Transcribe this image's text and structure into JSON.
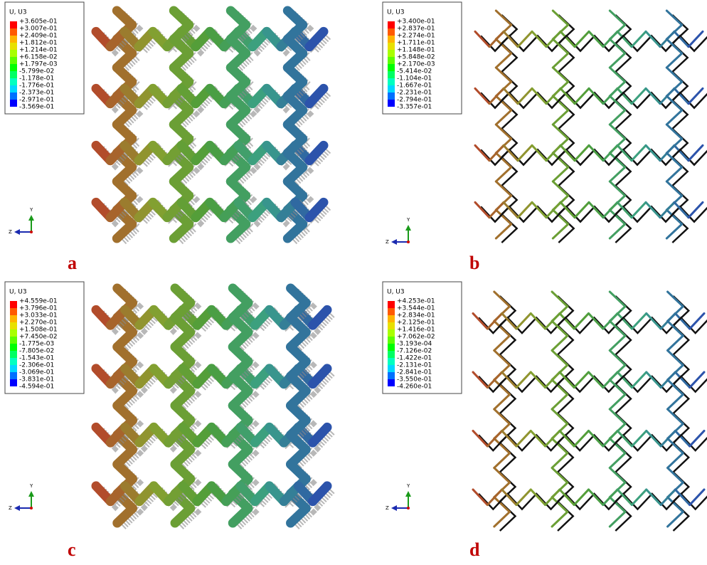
{
  "panels": [
    {
      "letter": "a",
      "legend": {
        "title": "U, U3",
        "labels": [
          "+3.605e-01",
          "+3.007e-01",
          "+2.409e-01",
          "+1.812e-01",
          "+1.214e-01",
          "+6.158e-02",
          "+1.797e-03",
          "-5.799e-02",
          "-1.178e-01",
          "-1.776e-01",
          "-2.373e-01",
          "-2.971e-01",
          "-3.569e-01"
        ]
      },
      "triad": {
        "y": "Y",
        "z": "Z"
      }
    },
    {
      "letter": "b",
      "legend": {
        "title": "U, U3",
        "labels": [
          "+3.400e-01",
          "+2.837e-01",
          "+2.274e-01",
          "+1.711e-01",
          "+1.148e-01",
          "+5.848e-02",
          "+2.170e-03",
          "-5.414e-02",
          "-1.104e-01",
          "-1.667e-01",
          "-2.231e-01",
          "-2.794e-01",
          "-3.357e-01"
        ]
      },
      "triad": {
        "y": "Y",
        "z": "Z"
      }
    },
    {
      "letter": "c",
      "legend": {
        "title": "U, U3",
        "labels": [
          "+4.559e-01",
          "+3.796e-01",
          "+3.033e-01",
          "+2.270e-01",
          "+1.508e-01",
          "+7.450e-02",
          "-1.775e-03",
          "-7.805e-02",
          "-1.543e-01",
          "-2.306e-01",
          "-3.069e-01",
          "-3.831e-01",
          "-4.594e-01"
        ]
      },
      "triad": {
        "y": "Y",
        "z": "Z"
      }
    },
    {
      "letter": "d",
      "legend": {
        "title": "U, U3",
        "labels": [
          "+4.253e-01",
          "+3.544e-01",
          "+2.834e-01",
          "+2.125e-01",
          "+1.416e-01",
          "+7.062e-02",
          "-3.193e-04",
          "-7.126e-02",
          "-1.422e-01",
          "-2.131e-01",
          "-2.841e-01",
          "-3.550e-01",
          "-4.260e-01"
        ]
      },
      "triad": {
        "y": "Y",
        "z": "Z"
      }
    }
  ]
}
